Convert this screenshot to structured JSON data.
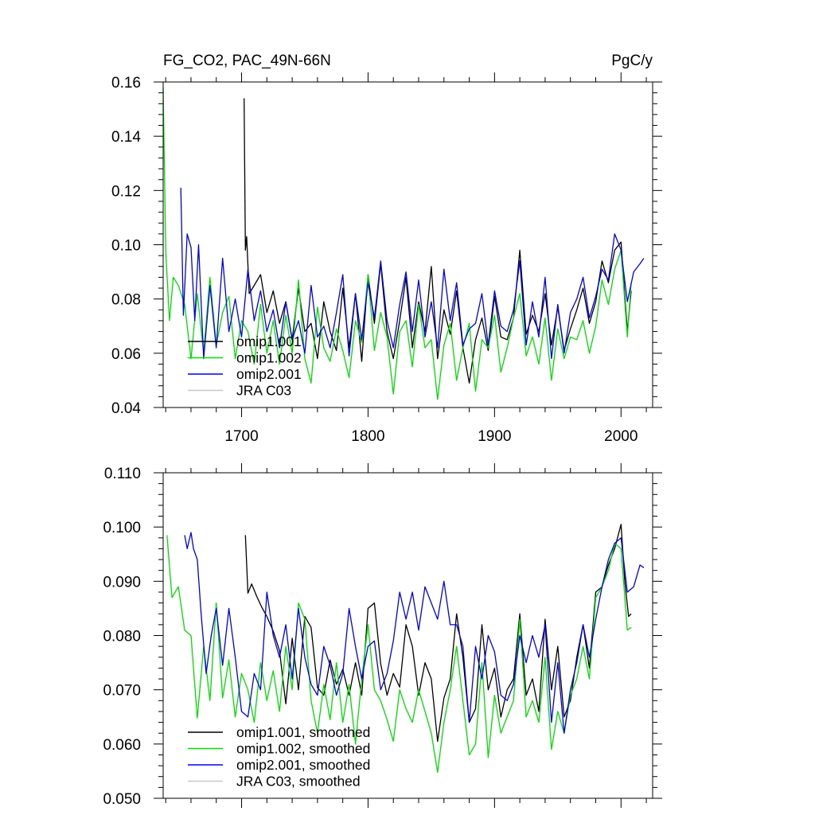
{
  "chart_data": [
    {
      "type": "line",
      "title": "FG_CO2, PAC_49N-66N",
      "units": "PgC/y",
      "xlim": [
        1638,
        2025
      ],
      "ylim": [
        0.04,
        0.16
      ],
      "x_major_ticks": [
        1700,
        1800,
        1900,
        2000
      ],
      "x_tick_labels": [
        "1700",
        "1800",
        "1900",
        "2000"
      ],
      "y_major_ticks": [
        0.04,
        0.06,
        0.08,
        0.1,
        0.12,
        0.14,
        0.16
      ],
      "y_tick_labels": [
        "0.04",
        "0.06",
        "0.08",
        "0.10",
        "0.12",
        "0.14",
        "0.16"
      ],
      "grid": false,
      "legend_position": "bottom-left",
      "series": [
        {
          "name": "omip1.001",
          "color": "#000000",
          "x": [
            1702,
            1703,
            1704,
            1706,
            1710,
            1715,
            1720,
            1725,
            1730,
            1735,
            1740,
            1745,
            1750,
            1755,
            1760,
            1765,
            1770,
            1775,
            1780,
            1785,
            1790,
            1795,
            1800,
            1805,
            1810,
            1815,
            1820,
            1825,
            1830,
            1835,
            1840,
            1845,
            1850,
            1855,
            1860,
            1865,
            1870,
            1875,
            1880,
            1885,
            1890,
            1895,
            1900,
            1905,
            1910,
            1915,
            1920,
            1925,
            1930,
            1935,
            1940,
            1945,
            1950,
            1955,
            1960,
            1965,
            1970,
            1975,
            1980,
            1985,
            1990,
            1995,
            2000,
            2005,
            2008
          ],
          "values": [
            0.154,
            0.098,
            0.103,
            0.082,
            0.085,
            0.089,
            0.075,
            0.083,
            0.071,
            0.079,
            0.065,
            0.084,
            0.068,
            0.071,
            0.058,
            0.079,
            0.068,
            0.061,
            0.084,
            0.062,
            0.082,
            0.057,
            0.089,
            0.071,
            0.093,
            0.068,
            0.058,
            0.072,
            0.088,
            0.062,
            0.079,
            0.068,
            0.092,
            0.058,
            0.076,
            0.067,
            0.083,
            0.062,
            0.049,
            0.065,
            0.073,
            0.061,
            0.081,
            0.066,
            0.065,
            0.073,
            0.098,
            0.067,
            0.074,
            0.068,
            0.082,
            0.063,
            0.077,
            0.061,
            0.069,
            0.076,
            0.084,
            0.071,
            0.079,
            0.094,
            0.086,
            0.098,
            0.101,
            0.068,
            0.083
          ]
        },
        {
          "name": "omip1.002",
          "color": "#00e000",
          "x": [
            1638,
            1640,
            1643,
            1646,
            1650,
            1655,
            1660,
            1665,
            1670,
            1675,
            1680,
            1685,
            1690,
            1695,
            1700,
            1705,
            1710,
            1715,
            1720,
            1725,
            1730,
            1735,
            1740,
            1745,
            1750,
            1755,
            1760,
            1765,
            1770,
            1775,
            1780,
            1785,
            1790,
            1795,
            1800,
            1805,
            1810,
            1815,
            1820,
            1825,
            1830,
            1835,
            1840,
            1845,
            1850,
            1855,
            1860,
            1865,
            1870,
            1875,
            1880,
            1885,
            1890,
            1895,
            1900,
            1905,
            1910,
            1915,
            1920,
            1925,
            1930,
            1935,
            1940,
            1945,
            1950,
            1955,
            1960,
            1965,
            1970,
            1975,
            1980,
            1985,
            1990,
            1995,
            2000,
            2005,
            2008
          ],
          "values": [
            0.158,
            0.098,
            0.072,
            0.088,
            0.085,
            0.078,
            0.058,
            0.082,
            0.06,
            0.088,
            0.063,
            0.075,
            0.081,
            0.058,
            0.072,
            0.068,
            0.056,
            0.078,
            0.06,
            0.072,
            0.056,
            0.074,
            0.06,
            0.087,
            0.058,
            0.049,
            0.077,
            0.062,
            0.057,
            0.069,
            0.061,
            0.051,
            0.072,
            0.064,
            0.089,
            0.061,
            0.075,
            0.066,
            0.045,
            0.068,
            0.072,
            0.055,
            0.078,
            0.062,
            0.065,
            0.043,
            0.063,
            0.071,
            0.05,
            0.062,
            0.071,
            0.046,
            0.065,
            0.062,
            0.074,
            0.053,
            0.062,
            0.073,
            0.082,
            0.059,
            0.066,
            0.056,
            0.073,
            0.05,
            0.069,
            0.058,
            0.066,
            0.065,
            0.072,
            0.06,
            0.07,
            0.087,
            0.078,
            0.091,
            0.098,
            0.066,
            0.086
          ]
        },
        {
          "name": "omip2.001",
          "color": "#0000ee",
          "x": [
            1652,
            1654,
            1657,
            1660,
            1663,
            1666,
            1670,
            1675,
            1680,
            1685,
            1690,
            1695,
            1700,
            1705,
            1710,
            1715,
            1720,
            1725,
            1730,
            1735,
            1740,
            1745,
            1750,
            1755,
            1760,
            1765,
            1770,
            1775,
            1780,
            1785,
            1790,
            1795,
            1800,
            1805,
            1810,
            1815,
            1820,
            1825,
            1830,
            1835,
            1840,
            1845,
            1850,
            1855,
            1860,
            1865,
            1870,
            1875,
            1880,
            1885,
            1890,
            1895,
            1900,
            1905,
            1910,
            1915,
            1920,
            1925,
            1930,
            1935,
            1940,
            1945,
            1950,
            1955,
            1960,
            1965,
            1970,
            1975,
            1980,
            1985,
            1990,
            1995,
            2000,
            2005,
            2010,
            2015,
            2018
          ],
          "values": [
            0.121,
            0.074,
            0.104,
            0.099,
            0.072,
            0.1,
            0.058,
            0.085,
            0.062,
            0.095,
            0.068,
            0.08,
            0.066,
            0.091,
            0.072,
            0.083,
            0.068,
            0.076,
            0.062,
            0.079,
            0.065,
            0.072,
            0.06,
            0.085,
            0.066,
            0.07,
            0.062,
            0.075,
            0.089,
            0.059,
            0.082,
            0.065,
            0.086,
            0.073,
            0.094,
            0.072,
            0.062,
            0.078,
            0.09,
            0.068,
            0.087,
            0.066,
            0.079,
            0.062,
            0.091,
            0.072,
            0.086,
            0.063,
            0.069,
            0.071,
            0.082,
            0.063,
            0.083,
            0.07,
            0.068,
            0.076,
            0.094,
            0.063,
            0.079,
            0.066,
            0.088,
            0.058,
            0.078,
            0.06,
            0.075,
            0.08,
            0.088,
            0.073,
            0.081,
            0.091,
            0.087,
            0.104,
            0.098,
            0.079,
            0.09,
            0.093,
            0.095
          ]
        },
        {
          "name": "JRA C03",
          "color": "#c8c8c8",
          "x": [],
          "values": []
        }
      ]
    },
    {
      "type": "line",
      "title": "",
      "xlim": [
        1638,
        2025
      ],
      "ylim": [
        0.05,
        0.11
      ],
      "x_major_ticks": [
        1700,
        1800,
        1900,
        2000
      ],
      "y_major_ticks": [
        0.05,
        0.06,
        0.07,
        0.08,
        0.09,
        0.1,
        0.11
      ],
      "y_tick_labels": [
        "0.050",
        "0.060",
        "0.070",
        "0.080",
        "0.090",
        "0.100",
        "0.110"
      ],
      "grid": false,
      "legend_position": "bottom-left",
      "series": [
        {
          "name": "omip1.001, smoothed",
          "color": "#000000",
          "x": [
            1703,
            1705,
            1708,
            1712,
            1716,
            1720,
            1725,
            1730,
            1735,
            1740,
            1745,
            1750,
            1755,
            1760,
            1765,
            1770,
            1775,
            1780,
            1785,
            1790,
            1795,
            1800,
            1805,
            1810,
            1815,
            1820,
            1825,
            1830,
            1835,
            1840,
            1845,
            1850,
            1855,
            1860,
            1865,
            1870,
            1875,
            1880,
            1885,
            1890,
            1895,
            1900,
            1905,
            1910,
            1915,
            1920,
            1925,
            1930,
            1935,
            1940,
            1945,
            1950,
            1955,
            1960,
            1965,
            1970,
            1975,
            1980,
            1985,
            1990,
            1995,
            2000,
            2003,
            2006,
            2008
          ],
          "values": [
            0.0985,
            0.0878,
            0.0895,
            0.0872,
            0.0852,
            0.0835,
            0.0808,
            0.0772,
            0.0674,
            0.0795,
            0.07,
            0.0835,
            0.0815,
            0.0704,
            0.069,
            0.0755,
            0.071,
            0.0738,
            0.069,
            0.075,
            0.069,
            0.085,
            0.086,
            0.0748,
            0.069,
            0.073,
            0.0705,
            0.082,
            0.078,
            0.069,
            0.075,
            0.072,
            0.0605,
            0.0685,
            0.072,
            0.084,
            0.076,
            0.064,
            0.0665,
            0.082,
            0.07,
            0.074,
            0.065,
            0.07,
            0.072,
            0.084,
            0.069,
            0.072,
            0.066,
            0.083,
            0.07,
            0.078,
            0.065,
            0.068,
            0.076,
            0.082,
            0.074,
            0.088,
            0.089,
            0.093,
            0.096,
            0.1005,
            0.09,
            0.0835,
            0.084
          ]
        },
        {
          "name": "omip1.002, smoothed",
          "color": "#00e000",
          "x": [
            1641,
            1645,
            1650,
            1655,
            1660,
            1665,
            1670,
            1675,
            1680,
            1685,
            1690,
            1695,
            1700,
            1705,
            1710,
            1715,
            1720,
            1725,
            1730,
            1735,
            1740,
            1745,
            1750,
            1755,
            1760,
            1765,
            1770,
            1775,
            1780,
            1785,
            1790,
            1795,
            1800,
            1805,
            1810,
            1815,
            1820,
            1825,
            1830,
            1835,
            1840,
            1845,
            1850,
            1855,
            1860,
            1865,
            1870,
            1875,
            1880,
            1885,
            1890,
            1895,
            1900,
            1905,
            1910,
            1915,
            1920,
            1925,
            1930,
            1935,
            1940,
            1945,
            1950,
            1955,
            1960,
            1965,
            1970,
            1975,
            1980,
            1985,
            1990,
            1995,
            2000,
            2005,
            2008
          ],
          "values": [
            0.0985,
            0.087,
            0.089,
            0.081,
            0.08,
            0.0648,
            0.078,
            0.068,
            0.086,
            0.0685,
            0.0755,
            0.065,
            0.073,
            0.07,
            0.064,
            0.075,
            0.068,
            0.0735,
            0.066,
            0.078,
            0.07,
            0.086,
            0.083,
            0.068,
            0.062,
            0.071,
            0.0645,
            0.075,
            0.064,
            0.071,
            0.06,
            0.072,
            0.082,
            0.07,
            0.068,
            0.0645,
            0.0605,
            0.07,
            0.0665,
            0.064,
            0.07,
            0.066,
            0.062,
            0.0548,
            0.064,
            0.07,
            0.078,
            0.068,
            0.058,
            0.06,
            0.075,
            0.0575,
            0.069,
            0.062,
            0.065,
            0.068,
            0.083,
            0.065,
            0.068,
            0.064,
            0.076,
            0.059,
            0.066,
            0.062,
            0.069,
            0.072,
            0.078,
            0.072,
            0.087,
            0.089,
            0.092,
            0.097,
            0.096,
            0.081,
            0.0815
          ]
        },
        {
          "name": "omip2.001, smoothed",
          "color": "#0000ee",
          "x": [
            1655,
            1657,
            1660,
            1662,
            1665,
            1668,
            1672,
            1676,
            1680,
            1685,
            1690,
            1695,
            1700,
            1705,
            1710,
            1715,
            1720,
            1725,
            1730,
            1735,
            1740,
            1745,
            1750,
            1755,
            1760,
            1765,
            1770,
            1775,
            1780,
            1785,
            1790,
            1795,
            1800,
            1805,
            1810,
            1815,
            1820,
            1825,
            1830,
            1835,
            1840,
            1845,
            1850,
            1855,
            1860,
            1865,
            1870,
            1875,
            1880,
            1885,
            1890,
            1895,
            1900,
            1905,
            1910,
            1915,
            1920,
            1925,
            1930,
            1935,
            1940,
            1945,
            1950,
            1955,
            1960,
            1965,
            1970,
            1975,
            1980,
            1985,
            1990,
            1995,
            2000,
            2005,
            2010,
            2015,
            2018
          ],
          "values": [
            0.0985,
            0.096,
            0.099,
            0.096,
            0.094,
            0.084,
            0.073,
            0.08,
            0.085,
            0.0745,
            0.085,
            0.076,
            0.066,
            0.065,
            0.073,
            0.07,
            0.088,
            0.08,
            0.076,
            0.082,
            0.072,
            0.085,
            0.076,
            0.071,
            0.069,
            0.078,
            0.0745,
            0.069,
            0.073,
            0.085,
            0.078,
            0.072,
            0.078,
            0.079,
            0.07,
            0.073,
            0.079,
            0.088,
            0.083,
            0.088,
            0.081,
            0.089,
            0.086,
            0.083,
            0.09,
            0.082,
            0.082,
            0.078,
            0.064,
            0.078,
            0.072,
            0.08,
            0.077,
            0.069,
            0.068,
            0.071,
            0.08,
            0.075,
            0.08,
            0.076,
            0.082,
            0.064,
            0.075,
            0.062,
            0.07,
            0.075,
            0.082,
            0.076,
            0.083,
            0.089,
            0.094,
            0.097,
            0.098,
            0.088,
            0.089,
            0.093,
            0.0925
          ]
        },
        {
          "name": "JRA C03, smoothed",
          "color": "#c8c8c8",
          "x": [],
          "values": []
        }
      ]
    }
  ]
}
